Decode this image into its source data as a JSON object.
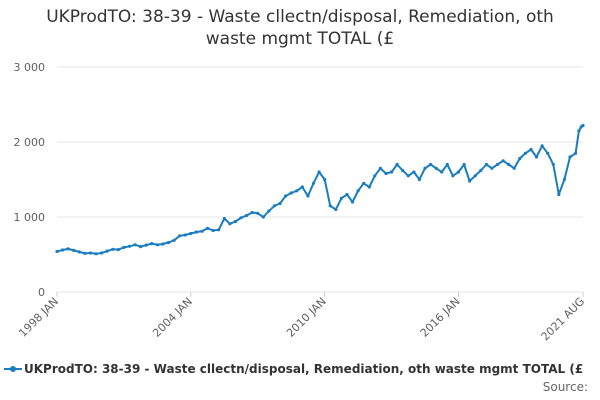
{
  "title_line1": "UKProdTO: 38-39 - Waste cllectn/disposal, Remediation, oth",
  "title_line2": "waste mgmt TOTAL (£",
  "source_label": "Source:",
  "colors": {
    "series": "#1a7dc0",
    "grid": "#e6e6e6",
    "axis_text": "#606060"
  },
  "chart_data": {
    "type": "line",
    "title": "UKProdTO: 38-39 - Waste cllectn/disposal, Remediation, oth waste mgmt TOTAL (£",
    "xlabel": "",
    "ylabel": "",
    "ylim": [
      0,
      3000
    ],
    "yticks": [
      0,
      1000,
      2000,
      3000
    ],
    "ytick_labels": [
      "0",
      "1 000",
      "2 000",
      "3 000"
    ],
    "xticks": [
      1998.0,
      2004.0,
      2010.0,
      2016.0,
      2021.583
    ],
    "xtick_labels": [
      "1998 JAN",
      "2004 JAN",
      "2010 JAN",
      "2016 JAN",
      "2021 AUG"
    ],
    "xlim": [
      1998.0,
      2021.583
    ],
    "grid": true,
    "legend_position": "bottom",
    "series": [
      {
        "name": "UKProdTO: 38-39 - Waste cllectn/disposal, Remediation, oth waste mgmt TOTAL (£",
        "color": "#1a7dc0",
        "points": [
          [
            1998.0,
            540
          ],
          [
            1998.25,
            560
          ],
          [
            1998.5,
            575
          ],
          [
            1998.75,
            555
          ],
          [
            1999.0,
            535
          ],
          [
            1999.25,
            515
          ],
          [
            1999.5,
            520
          ],
          [
            1999.75,
            510
          ],
          [
            2000.0,
            520
          ],
          [
            2000.25,
            545
          ],
          [
            2000.5,
            570
          ],
          [
            2000.75,
            565
          ],
          [
            2001.0,
            595
          ],
          [
            2001.25,
            610
          ],
          [
            2001.5,
            630
          ],
          [
            2001.75,
            605
          ],
          [
            2002.0,
            625
          ],
          [
            2002.25,
            645
          ],
          [
            2002.5,
            630
          ],
          [
            2002.75,
            640
          ],
          [
            2003.0,
            660
          ],
          [
            2003.25,
            690
          ],
          [
            2003.5,
            750
          ],
          [
            2003.75,
            760
          ],
          [
            2004.0,
            780
          ],
          [
            2004.25,
            800
          ],
          [
            2004.5,
            810
          ],
          [
            2004.75,
            850
          ],
          [
            2005.0,
            820
          ],
          [
            2005.25,
            830
          ],
          [
            2005.5,
            980
          ],
          [
            2005.75,
            910
          ],
          [
            2006.0,
            940
          ],
          [
            2006.25,
            990
          ],
          [
            2006.5,
            1020
          ],
          [
            2006.75,
            1060
          ],
          [
            2007.0,
            1050
          ],
          [
            2007.25,
            1000
          ],
          [
            2007.5,
            1080
          ],
          [
            2007.75,
            1150
          ],
          [
            2008.0,
            1180
          ],
          [
            2008.25,
            1280
          ],
          [
            2008.5,
            1320
          ],
          [
            2008.75,
            1350
          ],
          [
            2009.0,
            1400
          ],
          [
            2009.25,
            1280
          ],
          [
            2009.5,
            1450
          ],
          [
            2009.75,
            1600
          ],
          [
            2010.0,
            1500
          ],
          [
            2010.25,
            1150
          ],
          [
            2010.5,
            1100
          ],
          [
            2010.75,
            1250
          ],
          [
            2011.0,
            1300
          ],
          [
            2011.25,
            1200
          ],
          [
            2011.5,
            1350
          ],
          [
            2011.75,
            1450
          ],
          [
            2012.0,
            1400
          ],
          [
            2012.25,
            1550
          ],
          [
            2012.5,
            1650
          ],
          [
            2012.75,
            1580
          ],
          [
            2013.0,
            1600
          ],
          [
            2013.25,
            1700
          ],
          [
            2013.5,
            1620
          ],
          [
            2013.75,
            1550
          ],
          [
            2014.0,
            1600
          ],
          [
            2014.25,
            1500
          ],
          [
            2014.5,
            1650
          ],
          [
            2014.75,
            1700
          ],
          [
            2015.0,
            1650
          ],
          [
            2015.25,
            1600
          ],
          [
            2015.5,
            1700
          ],
          [
            2015.75,
            1550
          ],
          [
            2016.0,
            1600
          ],
          [
            2016.25,
            1700
          ],
          [
            2016.5,
            1480
          ],
          [
            2016.75,
            1550
          ],
          [
            2017.0,
            1620
          ],
          [
            2017.25,
            1700
          ],
          [
            2017.5,
            1650
          ],
          [
            2017.75,
            1700
          ],
          [
            2018.0,
            1750
          ],
          [
            2018.25,
            1700
          ],
          [
            2018.5,
            1650
          ],
          [
            2018.75,
            1780
          ],
          [
            2019.0,
            1850
          ],
          [
            2019.25,
            1900
          ],
          [
            2019.5,
            1800
          ],
          [
            2019.75,
            1950
          ],
          [
            2020.0,
            1850
          ],
          [
            2020.25,
            1700
          ],
          [
            2020.5,
            1300
          ],
          [
            2020.75,
            1500
          ],
          [
            2021.0,
            1800
          ],
          [
            2021.25,
            1850
          ],
          [
            2021.4,
            2150
          ],
          [
            2021.5,
            2200
          ],
          [
            2021.583,
            2220
          ]
        ]
      }
    ]
  }
}
